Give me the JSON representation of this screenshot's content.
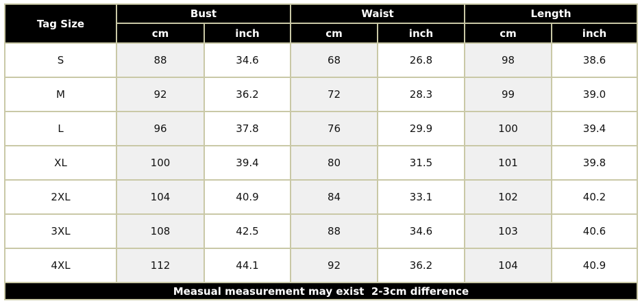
{
  "table": {
    "header": {
      "first": "Tag Size",
      "groups": [
        "Bust",
        "Waist",
        "Length"
      ],
      "units": [
        "cm",
        "inch",
        "cm",
        "inch",
        "cm",
        "inch"
      ]
    },
    "rows": [
      [
        "S",
        "88",
        "34.6",
        "68",
        "26.8",
        "98",
        "38.6"
      ],
      [
        "M",
        "92",
        "36.2",
        "72",
        "28.3",
        "99",
        "39.0"
      ],
      [
        "L",
        "96",
        "37.8",
        "76",
        "29.9",
        "100",
        "39.4"
      ],
      [
        "XL",
        "100",
        "39.4",
        "80",
        "31.5",
        "101",
        "39.8"
      ],
      [
        "2XL",
        "104",
        "40.9",
        "84",
        "33.1",
        "102",
        "40.2"
      ],
      [
        "3XL",
        "108",
        "42.5",
        "88",
        "34.6",
        "103",
        "40.6"
      ],
      [
        "4XL",
        "112",
        "44.1",
        "92",
        "36.2",
        "104",
        "40.9"
      ]
    ],
    "footer": "Measual measurement may exist  2-3cm difference"
  }
}
